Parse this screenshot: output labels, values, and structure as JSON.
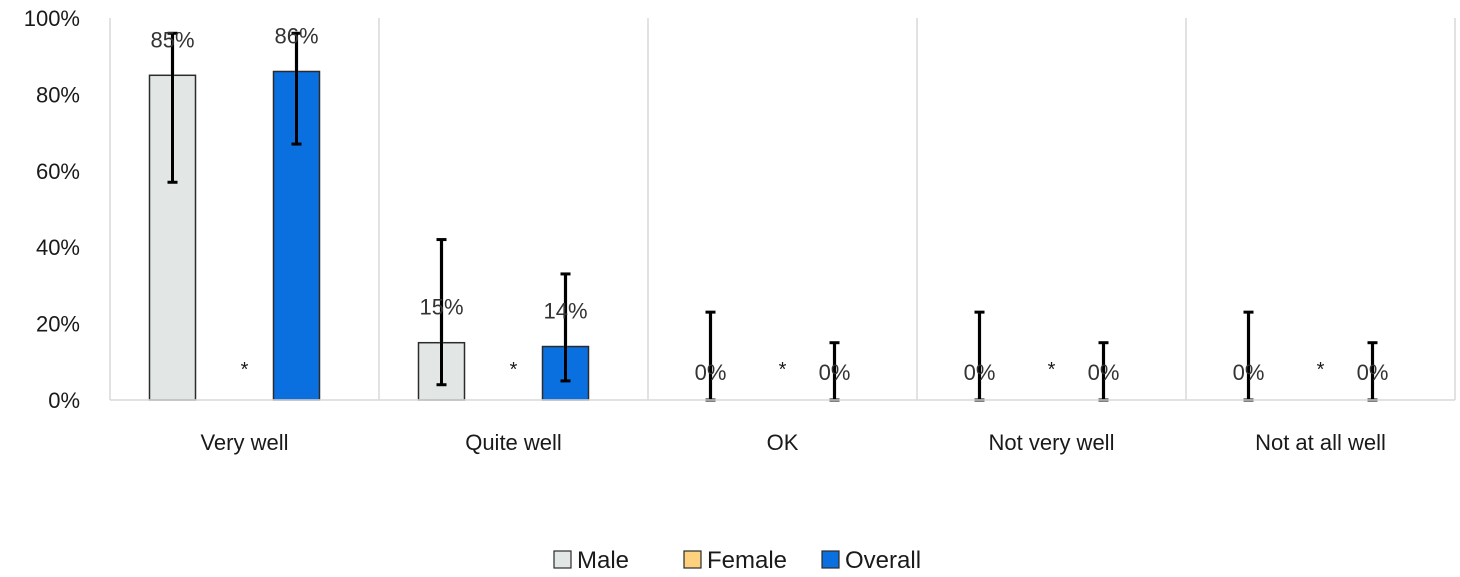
{
  "chart_data": {
    "type": "bar",
    "title": "",
    "xlabel": "",
    "ylabel": "",
    "categories": [
      "Very well",
      "Quite well",
      "OK",
      "Not very well",
      "Not at all well"
    ],
    "ylim": [
      0,
      100
    ],
    "y_ticks": [
      "0%",
      "20%",
      "40%",
      "60%",
      "80%",
      "100%"
    ],
    "y_tick_values": [
      0,
      20,
      40,
      60,
      80,
      100
    ],
    "grid": "vertical category separators",
    "legend": "bottom",
    "series": [
      {
        "name": "Male",
        "color": "#e2e7e6",
        "values": [
          85,
          15,
          0,
          0,
          0
        ],
        "labels": [
          "85%",
          "15%",
          "0%",
          "0%",
          "0%"
        ],
        "error_low": [
          57,
          4,
          0,
          0,
          0
        ],
        "error_high": [
          96,
          42,
          23,
          23,
          23
        ]
      },
      {
        "name": "Female",
        "color": "#fdd17e",
        "values": [
          null,
          null,
          null,
          null,
          null
        ],
        "labels": [
          "*",
          "*",
          "*",
          "*",
          "*"
        ]
      },
      {
        "name": "Overall",
        "color": "#0a6fdf",
        "values": [
          86,
          14,
          0,
          0,
          0
        ],
        "labels": [
          "86%",
          "14%",
          "0%",
          "0%",
          "0%"
        ],
        "error_low": [
          67,
          5,
          0,
          0,
          0
        ],
        "error_high": [
          96,
          33,
          15,
          15,
          15
        ]
      }
    ]
  }
}
